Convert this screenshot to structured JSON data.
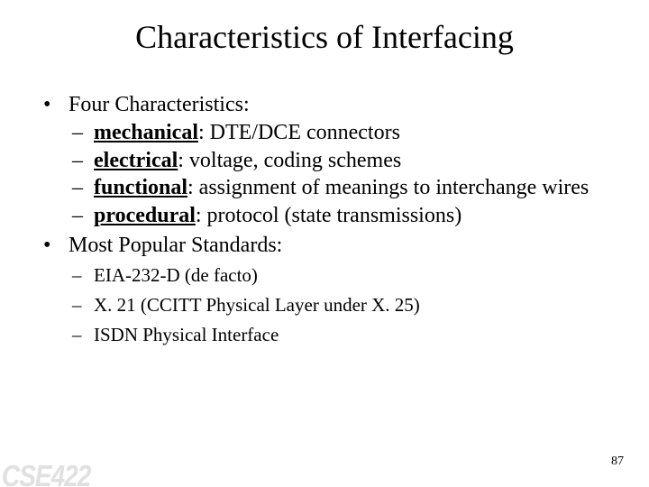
{
  "title": "Characteristics of Interfacing",
  "bullets": {
    "b1": "Four Characteristics:",
    "b1_1_term": "mechanical",
    "b1_1_rest": ": DTE/DCE connectors",
    "b1_2_term": "electrical",
    "b1_2_rest": ": voltage, coding schemes",
    "b1_3_term": "functional",
    "b1_3_rest": ": assignment of meanings to interchange wires",
    "b1_4_term": "procedural",
    "b1_4_rest": ": protocol (state transmissions)",
    "b2": "Most Popular Standards:",
    "b2_1": "EIA-232-D (de facto)",
    "b2_2": "X. 21 (CCITT Physical Layer under X. 25)",
    "b2_3": "ISDN Physical Interface"
  },
  "pageNumber": "87",
  "course": "CSE422",
  "style": {
    "background_color": "#ffffff",
    "text_color": "#000000",
    "title_fontsize": 36,
    "body_fontsize": 24,
    "sub_small_fontsize": 21,
    "page_number_fontsize": 14,
    "font_family": "Times New Roman",
    "course_color": "#e0e0e0",
    "slide_width": 720,
    "slide_height": 540
  }
}
